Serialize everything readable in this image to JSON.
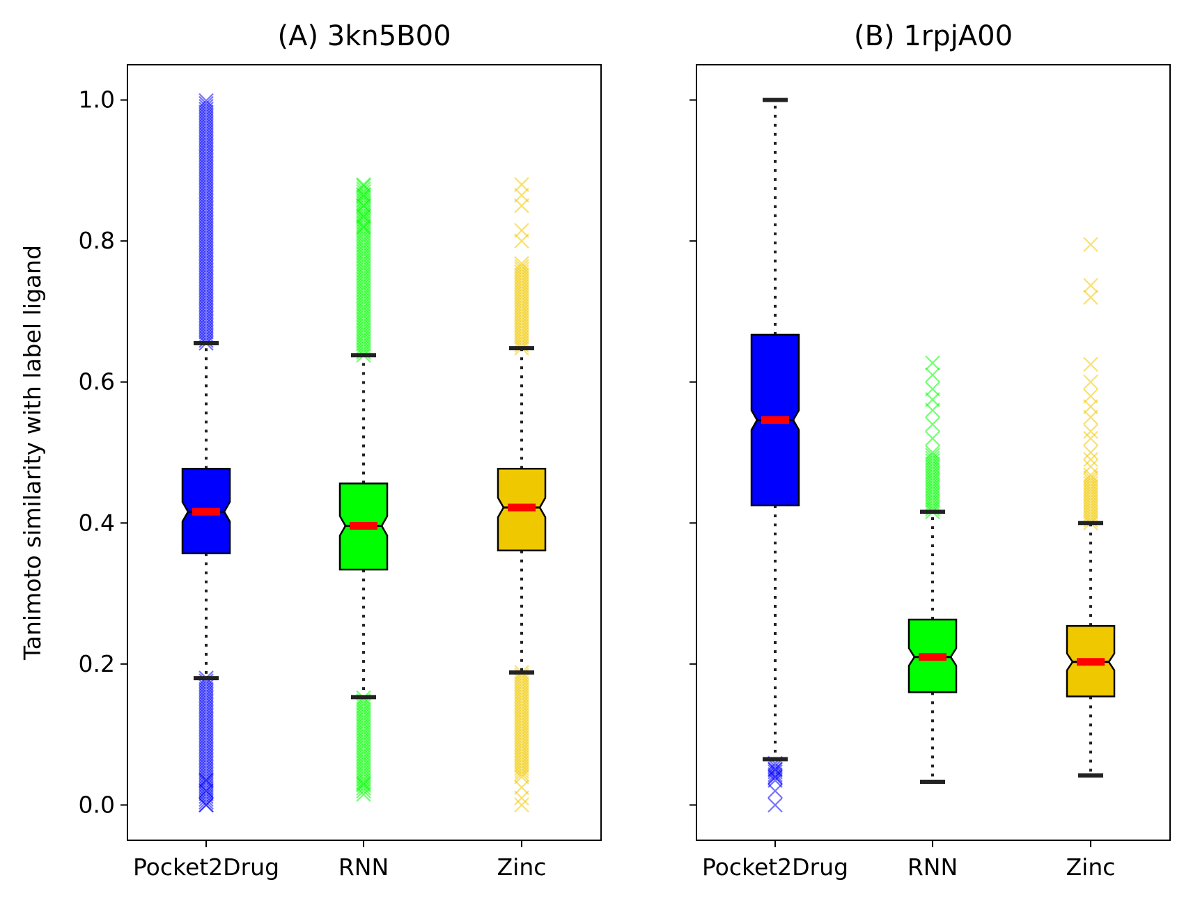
{
  "chart_data": [
    {
      "type": "box",
      "title": "(A) 3kn5B00",
      "ylabel": "Tanimoto similarity with label ligand",
      "xlabel": "",
      "categories": [
        "Pocket2Drug",
        "RNN",
        "Zinc"
      ],
      "ylim": [
        -0.05,
        1.05
      ],
      "yticks": [
        "0.0",
        "0.2",
        "0.4",
        "0.6",
        "0.8",
        "1.0"
      ],
      "notched": true,
      "grid": false,
      "series": [
        {
          "category": "Pocket2Drug",
          "color": "#0000ff",
          "whisker_low": 0.18,
          "q1": 0.357,
          "median": 0.416,
          "q3": 0.477,
          "whisker_high": 0.655,
          "outliers_low_range": [
            0.0,
            0.18
          ],
          "outliers_high_range": [
            0.655,
            1.0
          ],
          "outliers_sparse": [
            0.0,
            0.02,
            0.035
          ]
        },
        {
          "category": "RNN",
          "color": "#00ff00",
          "whisker_low": 0.153,
          "q1": 0.334,
          "median": 0.396,
          "q3": 0.456,
          "whisker_high": 0.638,
          "outliers_low_range": [
            0.02,
            0.153
          ],
          "outliers_high_range": [
            0.638,
            0.88
          ],
          "outliers_sparse": [
            0.015,
            0.03,
            0.82,
            0.835,
            0.85,
            0.865,
            0.88
          ]
        },
        {
          "category": "Zinc",
          "color": "#f0c800",
          "whisker_low": 0.188,
          "q1": 0.361,
          "median": 0.422,
          "q3": 0.477,
          "whisker_high": 0.648,
          "outliers_low_range": [
            0.04,
            0.188
          ],
          "outliers_high_range": [
            0.648,
            0.77
          ],
          "outliers_sparse": [
            0.0,
            0.01,
            0.025,
            0.8,
            0.815,
            0.85,
            0.865,
            0.88
          ]
        }
      ]
    },
    {
      "type": "box",
      "title": "(B) 1rpjA00",
      "ylabel": "",
      "xlabel": "",
      "categories": [
        "Pocket2Drug",
        "RNN",
        "Zinc"
      ],
      "ylim": [
        -0.05,
        1.05
      ],
      "yticks": [],
      "notched": true,
      "grid": false,
      "series": [
        {
          "category": "Pocket2Drug",
          "color": "#0000ff",
          "whisker_low": 0.065,
          "q1": 0.425,
          "median": 0.546,
          "q3": 0.667,
          "whisker_high": 1.0,
          "outliers_low_range": [
            0.035,
            0.06
          ],
          "outliers_high_range": null,
          "outliers_sparse": [
            0.0,
            0.02,
            0.04,
            0.05
          ]
        },
        {
          "category": "RNN",
          "color": "#00ff00",
          "whisker_low": 0.033,
          "q1": 0.16,
          "median": 0.21,
          "q3": 0.263,
          "whisker_high": 0.416,
          "outliers_low_range": null,
          "outliers_high_range": [
            0.416,
            0.5
          ],
          "outliers_sparse": [
            0.52,
            0.54,
            0.56,
            0.575,
            0.59,
            0.61,
            0.627
          ]
        },
        {
          "category": "Zinc",
          "color": "#f0c800",
          "whisker_low": 0.042,
          "q1": 0.154,
          "median": 0.203,
          "q3": 0.254,
          "whisker_high": 0.4,
          "outliers_low_range": null,
          "outliers_high_range": [
            0.4,
            0.47
          ],
          "outliers_sparse": [
            0.48,
            0.49,
            0.5,
            0.52,
            0.53,
            0.55,
            0.565,
            0.58,
            0.6,
            0.625,
            0.72,
            0.737,
            0.795
          ]
        }
      ]
    }
  ]
}
